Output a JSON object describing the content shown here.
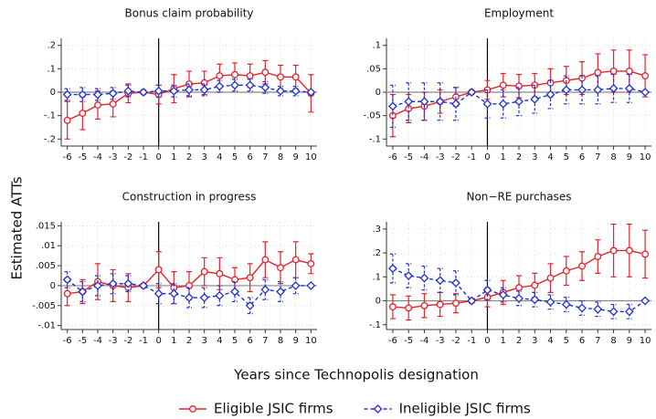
{
  "ylabel": "Estimated ATTs",
  "xlabel": "Years since Technopolis designation",
  "chart_data": [
    {
      "type": "line",
      "title": "Bonus claim probability",
      "x": [
        -6,
        -5,
        -4,
        -3,
        -2,
        -1,
        0,
        1,
        2,
        3,
        4,
        5,
        6,
        7,
        8,
        9,
        10
      ],
      "xlim": [
        -6.4,
        10.4
      ],
      "xticks": [
        -6,
        -5,
        -4,
        -3,
        -2,
        -1,
        0,
        1,
        2,
        3,
        4,
        5,
        6,
        7,
        8,
        9,
        10
      ],
      "ylim": [
        -0.23,
        0.23
      ],
      "yticks": [
        {
          "value": -0.2,
          "label": "-.2"
        },
        {
          "value": -0.1,
          "label": "-.1"
        },
        0,
        {
          "value": 0.1,
          "label": ".1"
        },
        {
          "value": 0.2,
          "label": ".2"
        }
      ],
      "grid": true,
      "series": [
        {
          "name": "Eligible JSIC firms",
          "color": "#e8202a",
          "marker": "circle",
          "dash": false,
          "values": [
            -0.12,
            -0.09,
            -0.055,
            -0.05,
            -0.005,
            0,
            -0.01,
            0.015,
            0.035,
            0.04,
            0.07,
            0.075,
            0.07,
            0.085,
            0.065,
            0.065,
            -0.005
          ],
          "errors": [
            0.08,
            0.07,
            0.06,
            0.055,
            0.04,
            0,
            0.04,
            0.06,
            0.055,
            0.05,
            0.05,
            0.05,
            0.05,
            0.05,
            0.05,
            0.05,
            0.08
          ]
        },
        {
          "name": "Ineligible JSIC firms",
          "color": "#1f2fd8",
          "marker": "diamond",
          "dash": true,
          "values": [
            -0.01,
            -0.01,
            -0.01,
            -0.005,
            0.005,
            0,
            0.005,
            0.005,
            0.01,
            0.01,
            0.025,
            0.03,
            0.03,
            0.02,
            0.005,
            0.005,
            0
          ],
          "errors": [
            0.025,
            0.03,
            0.025,
            0.025,
            0.025,
            0,
            0.025,
            0.025,
            0.025,
            0.025,
            0.025,
            0.025,
            0.025,
            0.025,
            0.02,
            0.02,
            0
          ]
        }
      ]
    },
    {
      "type": "line",
      "title": "Employment",
      "x": [
        -6,
        -5,
        -4,
        -3,
        -2,
        -1,
        0,
        1,
        2,
        3,
        4,
        5,
        6,
        7,
        8,
        9,
        10
      ],
      "xlim": [
        -6.4,
        10.4
      ],
      "xticks": [
        -6,
        -5,
        -4,
        -3,
        -2,
        -1,
        0,
        1,
        2,
        3,
        4,
        5,
        6,
        7,
        8,
        9,
        10
      ],
      "ylim": [
        -0.115,
        0.115
      ],
      "yticks": [
        {
          "value": -0.1,
          "label": "-.1"
        },
        {
          "value": -0.05,
          "label": "-.05"
        },
        0,
        {
          "value": 0.05,
          "label": ".05"
        },
        {
          "value": 0.1,
          "label": ".1"
        }
      ],
      "grid": true,
      "series": [
        {
          "color": "#e8202a",
          "marker": "circle",
          "dash": false,
          "values": [
            -0.05,
            -0.035,
            -0.03,
            -0.02,
            -0.01,
            0,
            0.005,
            0.015,
            0.013,
            0.015,
            0.02,
            0.025,
            0.03,
            0.042,
            0.045,
            0.045,
            0.035
          ],
          "errors": [
            0.045,
            0.03,
            0.03,
            0.025,
            0.02,
            0,
            0.02,
            0.025,
            0.025,
            0.025,
            0.03,
            0.03,
            0.035,
            0.04,
            0.045,
            0.045,
            0.045
          ]
        },
        {
          "color": "#1f2fd8",
          "marker": "diamond",
          "dash": true,
          "values": [
            -0.03,
            -0.02,
            -0.02,
            -0.02,
            -0.025,
            0,
            -0.025,
            -0.025,
            -0.02,
            -0.015,
            -0.005,
            0.005,
            0.005,
            0.005,
            0.008,
            0.008,
            0
          ],
          "errors": [
            0.045,
            0.04,
            0.04,
            0.04,
            0.035,
            0,
            0.03,
            0.03,
            0.03,
            0.03,
            0.03,
            0.03,
            0.03,
            0.03,
            0.03,
            0.03,
            0
          ]
        }
      ]
    },
    {
      "type": "line",
      "title": "Construction in progress",
      "x": [
        -6,
        -5,
        -4,
        -3,
        -2,
        -1,
        0,
        1,
        2,
        3,
        4,
        5,
        6,
        7,
        8,
        9,
        10
      ],
      "xlim": [
        -6.4,
        10.4
      ],
      "xticks": [
        -6,
        -5,
        -4,
        -3,
        -2,
        -1,
        0,
        1,
        2,
        3,
        4,
        5,
        6,
        7,
        8,
        9,
        10
      ],
      "ylim": [
        -0.011,
        0.016
      ],
      "yticks": [
        {
          "value": -0.01,
          "label": "-.01"
        },
        {
          "value": -0.005,
          "label": "-.005"
        },
        0,
        {
          "value": 0.005,
          "label": ".005"
        },
        {
          "value": 0.01,
          "label": ".01"
        },
        {
          "value": 0.015,
          "label": ".015"
        }
      ],
      "grid": true,
      "series": [
        {
          "color": "#e8202a",
          "marker": "circle",
          "dash": false,
          "values": [
            -0.002,
            -0.0015,
            0.001,
            0,
            -0.0005,
            0,
            0.004,
            -0.0005,
            0,
            0.0035,
            0.003,
            0.0015,
            0.002,
            0.0065,
            0.0045,
            0.0065,
            0.0055
          ],
          "errors": [
            0.003,
            0.003,
            0.0045,
            0.004,
            0.0035,
            0,
            0.0045,
            0.004,
            0.0035,
            0.0035,
            0.004,
            0.003,
            0.0035,
            0.0045,
            0.004,
            0.0045,
            0.0025
          ]
        },
        {
          "color": "#1f2fd8",
          "marker": "diamond",
          "dash": true,
          "values": [
            0.0015,
            -0.0015,
            0,
            0.0005,
            0.0005,
            0,
            -0.002,
            -0.002,
            -0.003,
            -0.003,
            -0.0025,
            -0.0015,
            -0.005,
            -0.001,
            -0.0015,
            0,
            0
          ],
          "errors": [
            0.002,
            0.0025,
            0.0025,
            0.0025,
            0.002,
            0,
            0.0025,
            0.0025,
            0.0025,
            0.0025,
            0.0025,
            0.0025,
            0.002,
            0.0025,
            0.0025,
            0.002,
            0
          ]
        }
      ]
    },
    {
      "type": "line",
      "title": "Non−RE purchases",
      "x": [
        -6,
        -5,
        -4,
        -3,
        -2,
        -1,
        0,
        1,
        2,
        3,
        4,
        5,
        6,
        7,
        8,
        9,
        10
      ],
      "xlim": [
        -6.4,
        10.4
      ],
      "xticks": [
        -6,
        -5,
        -4,
        -3,
        -2,
        -1,
        0,
        1,
        2,
        3,
        4,
        5,
        6,
        7,
        8,
        9,
        10
      ],
      "ylim": [
        -0.12,
        0.33
      ],
      "yticks": [
        {
          "value": -0.1,
          "label": "-.1"
        },
        0,
        {
          "value": 0.1,
          "label": ".1"
        },
        {
          "value": 0.2,
          "label": ".2"
        },
        {
          "value": 0.3,
          "label": ".3"
        }
      ],
      "grid": true,
      "series": [
        {
          "color": "#e8202a",
          "marker": "circle",
          "dash": false,
          "values": [
            -0.025,
            -0.03,
            -0.02,
            -0.015,
            -0.01,
            0,
            0.015,
            0.035,
            0.055,
            0.065,
            0.095,
            0.125,
            0.145,
            0.185,
            0.21,
            0.21,
            0.195
          ],
          "errors": [
            0.05,
            0.05,
            0.05,
            0.05,
            0.04,
            0,
            0.04,
            0.05,
            0.05,
            0.05,
            0.06,
            0.06,
            0.06,
            0.07,
            0.11,
            0.11,
            0.1
          ]
        },
        {
          "color": "#1f2fd8",
          "marker": "diamond",
          "dash": true,
          "values": [
            0.135,
            0.105,
            0.095,
            0.085,
            0.075,
            0,
            0.045,
            0.025,
            0.01,
            0.005,
            -0.005,
            -0.015,
            -0.03,
            -0.035,
            -0.045,
            -0.045,
            0
          ],
          "errors": [
            0.06,
            0.05,
            0.05,
            0.05,
            0.05,
            0,
            0.04,
            0.03,
            0.03,
            0.03,
            0.03,
            0.03,
            0.03,
            0.03,
            0.03,
            0.03,
            0
          ]
        }
      ]
    }
  ]
}
